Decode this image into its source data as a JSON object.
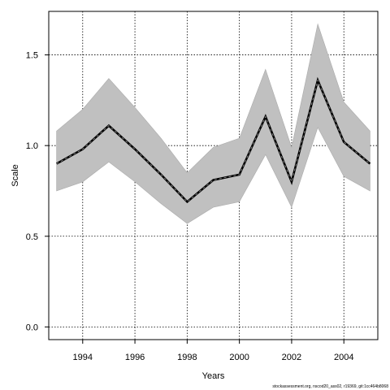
{
  "chart_data": {
    "type": "line",
    "xlabel": "Years",
    "ylabel": "Scale",
    "x": [
      1993,
      1994,
      1995,
      1996,
      1997,
      1998,
      1999,
      2000,
      2001,
      2002,
      2003,
      2004,
      2005
    ],
    "series": [
      {
        "values": [
          0.9,
          0.98,
          1.11,
          0.98,
          0.84,
          0.69,
          0.81,
          0.84,
          1.16,
          0.8,
          1.36,
          1.02,
          0.9
        ],
        "lower": [
          0.75,
          0.8,
          0.91,
          0.8,
          0.68,
          0.57,
          0.66,
          0.69,
          0.95,
          0.66,
          1.1,
          0.83,
          0.75
        ],
        "upper": [
          1.08,
          1.2,
          1.37,
          1.21,
          1.04,
          0.85,
          0.99,
          1.04,
          1.42,
          0.99,
          1.67,
          1.24,
          1.08
        ]
      }
    ],
    "xlim": [
      1992.7,
      2005.3
    ],
    "ylim": [
      -0.07,
      1.74
    ],
    "xticks": [
      1994,
      1996,
      1998,
      2000,
      2002,
      2004
    ],
    "yticks": [
      0.0,
      0.5,
      1.0,
      1.5
    ],
    "xtick_labels": [
      "1994",
      "1996",
      "1998",
      "2000",
      "2002",
      "2004"
    ],
    "ytick_labels": [
      "0.0",
      "0.5",
      "1.0",
      "1.5"
    ],
    "grid": true,
    "colors": {
      "band": "#c0c0c0",
      "line": "#000000",
      "grid": "#000000"
    }
  },
  "footer_text": "stockassessment.org, nscod20_ass02, r19369, git:1cc464b8068"
}
